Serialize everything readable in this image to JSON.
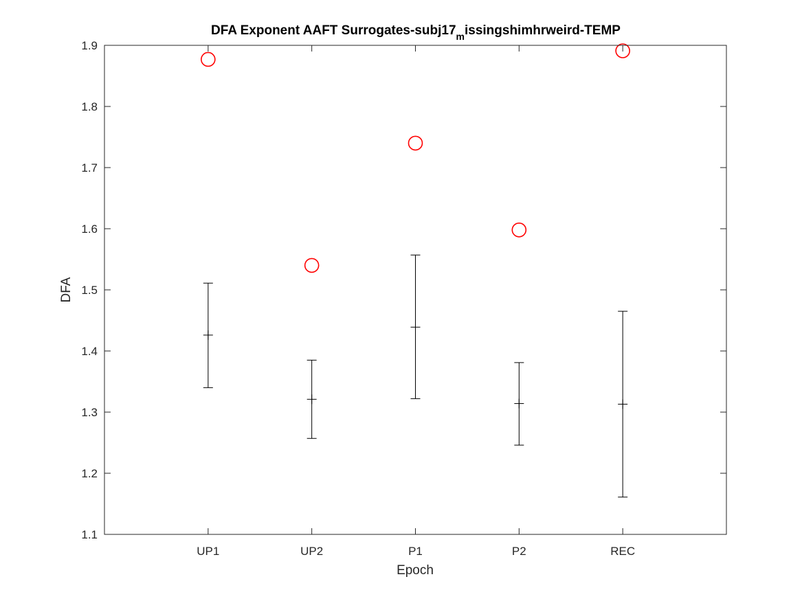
{
  "chart_data": {
    "type": "scatter",
    "title_main": "DFA Exponent AAFT Surrogates-subj17",
    "title_subscript": "m",
    "title_rest": "issingshimhrweird-TEMP",
    "xlabel": "Epoch",
    "ylabel": "DFA",
    "categories": [
      "UP1",
      "UP2",
      "P1",
      "P2",
      "REC"
    ],
    "xlim": [
      0,
      6
    ],
    "ylim": [
      1.1,
      1.9
    ],
    "yticks": [
      "1.1",
      "1.2",
      "1.3",
      "1.4",
      "1.5",
      "1.6",
      "1.7",
      "1.8",
      "1.9"
    ],
    "grid": false,
    "series": [
      {
        "values": [
          1.877,
          1.54,
          1.74,
          1.598,
          1.891
        ],
        "marker": "circle",
        "color": "#ff0000"
      },
      {
        "values": [
          1.426,
          1.321,
          1.439,
          1.314,
          1.313
        ],
        "lower": [
          1.34,
          1.257,
          1.322,
          1.246,
          1.161
        ],
        "upper": [
          1.511,
          1.385,
          1.557,
          1.381,
          1.465
        ],
        "marker": "plus",
        "color": "#000000"
      }
    ]
  }
}
